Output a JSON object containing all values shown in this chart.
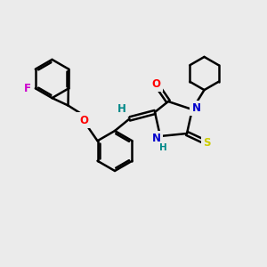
{
  "bg_color": "#ebebeb",
  "line_color": "#000000",
  "bond_width": 1.8,
  "atom_colors": {
    "O": "#ff0000",
    "N": "#0000cc",
    "S": "#cccc00",
    "F": "#cc00cc",
    "H": "#008888",
    "C": "#000000"
  },
  "font_size": 8.5,
  "fig_width": 3.0,
  "fig_height": 3.0,
  "dpi": 100
}
